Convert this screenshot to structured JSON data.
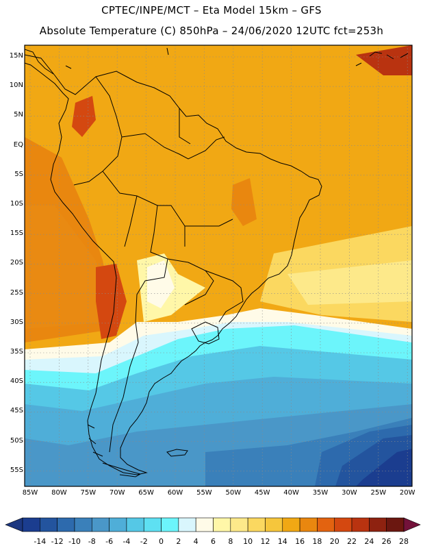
{
  "header": {
    "line1": "CPTEC/INPE/MCT –   Eta Model 15km – GFS",
    "line2": "Absolute Temperature (C) 850hPa – 24/06/2020 12UTC fct=253h"
  },
  "map": {
    "lat_labels": [
      "15N",
      "10N",
      "5N",
      "EQ",
      "5S",
      "10S",
      "15S",
      "20S",
      "25S",
      "30S",
      "35S",
      "40S",
      "45S",
      "50S",
      "55S"
    ],
    "lon_labels": [
      "85W",
      "80W",
      "75W",
      "70W",
      "65W",
      "60W",
      "55W",
      "50W",
      "45W",
      "40W",
      "35W",
      "30W",
      "25W",
      "20W"
    ]
  },
  "colorbar": {
    "labels": [
      "-14",
      "-12",
      "-10",
      "-8",
      "-6",
      "-4",
      "-2",
      "0",
      "2",
      "4",
      "6",
      "8",
      "10",
      "12",
      "14",
      "16",
      "18",
      "20",
      "22",
      "24",
      "26",
      "28"
    ],
    "colors": [
      "#1b3d8f",
      "#23549e",
      "#2d6aad",
      "#3a80ba",
      "#4a97c8",
      "#4faed8",
      "#55c8e6",
      "#5ee0f2",
      "#6cf5fb",
      "#d9f6fd",
      "#fffbe8",
      "#fff7a8",
      "#fde98a",
      "#fbd860",
      "#f6c63c",
      "#f1a814",
      "#e9870f",
      "#e36310",
      "#d44810",
      "#b93310",
      "#8e2210",
      "#6b1710"
    ],
    "under_color": "#1c3780",
    "over_color": "#73123a"
  }
}
